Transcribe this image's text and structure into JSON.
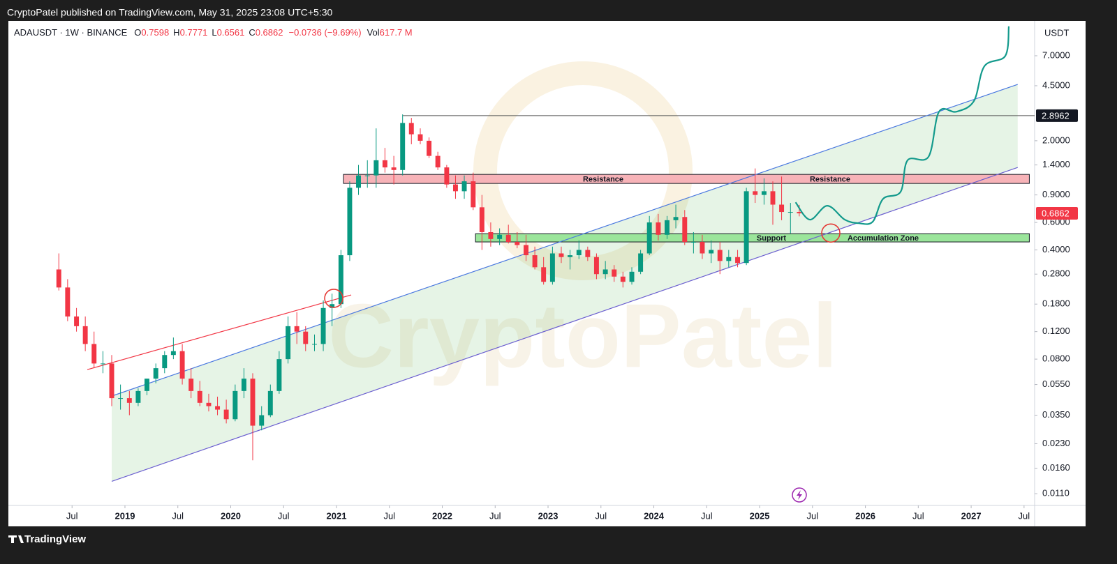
{
  "page": {
    "header": "CryptoPatel published on TradingView.com, May 31, 2025 23:08 UTC+5:30",
    "footer": "TradingView"
  },
  "chart_data": {
    "type": "candlestick",
    "legend": {
      "symbol": "ADAUSDT · 1W · BINANCE",
      "o_label": "O",
      "open": 0.7598,
      "h_label": "H",
      "high": 0.7771,
      "l_label": "L",
      "low": 0.6561,
      "c_label": "C",
      "close": 0.6862,
      "change": "−0.0736 (−9.69%)",
      "vol_label": "Vol",
      "volume": "617.7 M"
    },
    "currency": "USDT",
    "watermark": "CryptoPatel",
    "log_scale": true,
    "grid": false,
    "up_color": "#089981",
    "down_color": "#f23645",
    "x": [
      2018.375,
      2018.458,
      2018.542,
      2018.625,
      2018.708,
      2018.792,
      2018.875,
      2018.958,
      2019.042,
      2019.125,
      2019.208,
      2019.292,
      2019.375,
      2019.458,
      2019.542,
      2019.625,
      2019.708,
      2019.792,
      2019.875,
      2019.958,
      2020.042,
      2020.125,
      2020.208,
      2020.292,
      2020.375,
      2020.458,
      2020.542,
      2020.625,
      2020.708,
      2020.792,
      2020.875,
      2020.958,
      2021.042,
      2021.125,
      2021.208,
      2021.292,
      2021.375,
      2021.458,
      2021.542,
      2021.625,
      2021.708,
      2021.792,
      2021.875,
      2021.958,
      2022.042,
      2022.125,
      2022.208,
      2022.292,
      2022.375,
      2022.458,
      2022.542,
      2022.625,
      2022.708,
      2022.792,
      2022.875,
      2022.958,
      2023.042,
      2023.125,
      2023.208,
      2023.292,
      2023.375,
      2023.458,
      2023.542,
      2023.625,
      2023.708,
      2023.792,
      2023.875,
      2023.958,
      2024.042,
      2024.125,
      2024.208,
      2024.292,
      2024.375,
      2024.458,
      2024.542,
      2024.625,
      2024.708,
      2024.792,
      2024.875,
      2024.958,
      2025.042,
      2025.125,
      2025.208,
      2025.292,
      2025.375
    ],
    "open": [
      0.3,
      0.23,
      0.15,
      0.13,
      0.1,
      0.075,
      0.075,
      0.045,
      0.045,
      0.042,
      0.05,
      0.06,
      0.07,
      0.085,
      0.09,
      0.06,
      0.05,
      0.042,
      0.04,
      0.038,
      0.033,
      0.05,
      0.06,
      0.03,
      0.035,
      0.05,
      0.08,
      0.13,
      0.12,
      0.1,
      0.1,
      0.17,
      0.18,
      0.37,
      1.0,
      1.2,
      1.2,
      1.5,
      1.35,
      1.3,
      2.6,
      2.2,
      2.0,
      1.6,
      1.35,
      1.05,
      0.95,
      1.1,
      0.75,
      0.52,
      0.47,
      0.5,
      0.45,
      0.43,
      0.37,
      0.31,
      0.25,
      0.38,
      0.36,
      0.37,
      0.4,
      0.36,
      0.28,
      0.3,
      0.27,
      0.25,
      0.29,
      0.38,
      0.6,
      0.5,
      0.62,
      0.65,
      0.45,
      0.45,
      0.38,
      0.4,
      0.34,
      0.36,
      0.33,
      0.95,
      0.9,
      0.95,
      0.78,
      0.7,
      0.7
    ],
    "high": [
      0.38,
      0.26,
      0.17,
      0.15,
      0.12,
      0.09,
      0.085,
      0.055,
      0.05,
      0.052,
      0.06,
      0.075,
      0.09,
      0.11,
      0.1,
      0.07,
      0.058,
      0.048,
      0.046,
      0.044,
      0.055,
      0.07,
      0.065,
      0.04,
      0.055,
      0.09,
      0.15,
      0.16,
      0.13,
      0.115,
      0.19,
      0.21,
      0.4,
      1.1,
      1.4,
      1.5,
      2.4,
      1.8,
      1.6,
      2.95,
      2.8,
      2.4,
      2.1,
      1.7,
      1.4,
      1.2,
      1.2,
      1.25,
      0.9,
      0.6,
      0.55,
      0.58,
      0.52,
      0.5,
      0.42,
      0.36,
      0.42,
      0.42,
      0.4,
      0.46,
      0.42,
      0.38,
      0.34,
      0.32,
      0.29,
      0.31,
      0.4,
      0.66,
      0.68,
      0.66,
      0.78,
      0.72,
      0.52,
      0.5,
      0.46,
      0.45,
      0.4,
      0.4,
      1.0,
      1.33,
      1.15,
      1.1,
      1.18,
      0.8,
      0.7771
    ],
    "low": [
      0.22,
      0.14,
      0.12,
      0.09,
      0.07,
      0.065,
      0.04,
      0.038,
      0.035,
      0.04,
      0.047,
      0.056,
      0.065,
      0.08,
      0.055,
      0.045,
      0.04,
      0.037,
      0.035,
      0.031,
      0.032,
      0.045,
      0.018,
      0.028,
      0.034,
      0.048,
      0.075,
      0.1,
      0.09,
      0.09,
      0.09,
      0.13,
      0.17,
      0.34,
      0.9,
      1.0,
      1.0,
      1.25,
      1.05,
      1.2,
      1.9,
      1.9,
      1.55,
      1.3,
      1.0,
      0.85,
      0.85,
      0.72,
      0.4,
      0.42,
      0.43,
      0.44,
      0.41,
      0.34,
      0.3,
      0.24,
      0.24,
      0.33,
      0.3,
      0.35,
      0.34,
      0.26,
      0.26,
      0.25,
      0.23,
      0.24,
      0.28,
      0.37,
      0.46,
      0.47,
      0.55,
      0.43,
      0.38,
      0.35,
      0.33,
      0.28,
      0.31,
      0.31,
      0.32,
      0.8,
      0.78,
      0.58,
      0.62,
      0.51,
      0.6561
    ],
    "close": [
      0.23,
      0.15,
      0.13,
      0.1,
      0.075,
      0.075,
      0.045,
      0.045,
      0.042,
      0.05,
      0.06,
      0.07,
      0.085,
      0.09,
      0.06,
      0.05,
      0.042,
      0.04,
      0.038,
      0.033,
      0.05,
      0.06,
      0.03,
      0.035,
      0.05,
      0.08,
      0.13,
      0.12,
      0.1,
      0.1,
      0.17,
      0.18,
      0.37,
      1.0,
      1.2,
      1.2,
      1.5,
      1.35,
      1.3,
      2.6,
      2.2,
      2.0,
      1.6,
      1.35,
      1.05,
      0.95,
      1.1,
      0.75,
      0.52,
      0.47,
      0.5,
      0.45,
      0.43,
      0.37,
      0.31,
      0.25,
      0.38,
      0.36,
      0.37,
      0.4,
      0.36,
      0.28,
      0.3,
      0.27,
      0.25,
      0.29,
      0.38,
      0.6,
      0.5,
      0.62,
      0.65,
      0.45,
      0.45,
      0.38,
      0.4,
      0.34,
      0.36,
      0.33,
      0.95,
      0.9,
      0.95,
      0.78,
      0.7,
      0.7,
      0.6862
    ],
    "xlim": [
      2017.898,
      2027.6
    ],
    "xticks": [
      {
        "value": 2018.5,
        "label": "Jul"
      },
      2019,
      {
        "value": 2019.5,
        "label": "Jul"
      },
      2020,
      {
        "value": 2020.5,
        "label": "Jul"
      },
      2021,
      {
        "value": 2021.5,
        "label": "Jul"
      },
      2022,
      {
        "value": 2022.5,
        "label": "Jul"
      },
      2023,
      {
        "value": 2023.5,
        "label": "Jul"
      },
      2024,
      {
        "value": 2024.5,
        "label": "Jul"
      },
      2025,
      {
        "value": 2025.5,
        "label": "Jul"
      },
      2026,
      {
        "value": 2026.5,
        "label": "Jul"
      },
      2027,
      {
        "value": 2027.5,
        "label": "Jul"
      }
    ],
    "ylim": [
      0.0068,
      11.7
    ],
    "yticks": [
      {
        "value": 7,
        "label": "7.0000"
      },
      {
        "value": 4.5,
        "label": "4.5000"
      },
      {
        "value": 2,
        "label": "2.0000"
      },
      {
        "value": 1.4,
        "label": "1.4000"
      },
      {
        "value": 0.9,
        "label": "0.9000"
      },
      {
        "value": 0.6,
        "label": "0.6000"
      },
      {
        "value": 0.4,
        "label": "0.4000"
      },
      {
        "value": 0.28,
        "label": "0.2800"
      },
      {
        "value": 0.18,
        "label": "0.1800"
      },
      {
        "value": 0.12,
        "label": "0.1200"
      },
      {
        "value": 0.08,
        "label": "0.0800"
      },
      {
        "value": 0.055,
        "label": "0.0550"
      },
      {
        "value": 0.035,
        "label": "0.0350"
      },
      {
        "value": 0.023,
        "label": "0.0230"
      },
      {
        "value": 0.016,
        "label": "0.0160"
      },
      {
        "value": 0.011,
        "label": "0.0110"
      }
    ],
    "last_price": 0.6862,
    "last_price_color": "#f23645",
    "level": {
      "value": 2.8962,
      "x_start": 2021.627,
      "color": "#131722"
    },
    "zones": [
      {
        "labels": [
          "Resistance",
          "Resistance"
        ],
        "x": [
          2021.066,
          2027.55
        ],
        "y": [
          1.066,
          1.218
        ],
        "color": "#f7b3b8"
      },
      {
        "labels": [
          "Support",
          "Accumulation Zone"
        ],
        "x": [
          2022.314,
          2027.55
        ],
        "y": [
          0.45,
          0.508
        ],
        "color": "#9be59b"
      }
    ],
    "trendlines": [
      {
        "x": [
          2018.875,
          2027.44
        ],
        "y": [
          0.0464,
          4.59
        ],
        "color": "#4a78e0"
      },
      {
        "x": [
          2018.875,
          2027.44
        ],
        "y": [
          0.0132,
          1.35
        ],
        "color": "#6b5fd0"
      },
      {
        "x": [
          2018.644,
          2021.139
        ],
        "y": [
          0.0685,
          0.206
        ],
        "color": "#f23645"
      }
    ],
    "channel_fill": "rgba(76,175,80,0.14)",
    "circles": {
      "color": "#e53935",
      "x": [
        2020.974,
        2025.673
      ],
      "y": [
        0.196,
        0.513
      ]
    },
    "projection": {
      "color": "#139a8c",
      "x": [
        2025.34,
        2025.475,
        2025.64,
        2025.805,
        2025.937,
        2026.069,
        2026.168,
        2026.333,
        2026.399,
        2026.597,
        2026.696,
        2026.861,
        2027.026,
        2027.125,
        2027.323,
        2027.356
      ],
      "y": [
        0.807,
        0.625,
        0.767,
        0.625,
        0.593,
        0.606,
        0.85,
        0.943,
        1.5,
        1.58,
        3.07,
        3.07,
        3.59,
        6.0,
        6.99,
        10.8
      ]
    }
  }
}
